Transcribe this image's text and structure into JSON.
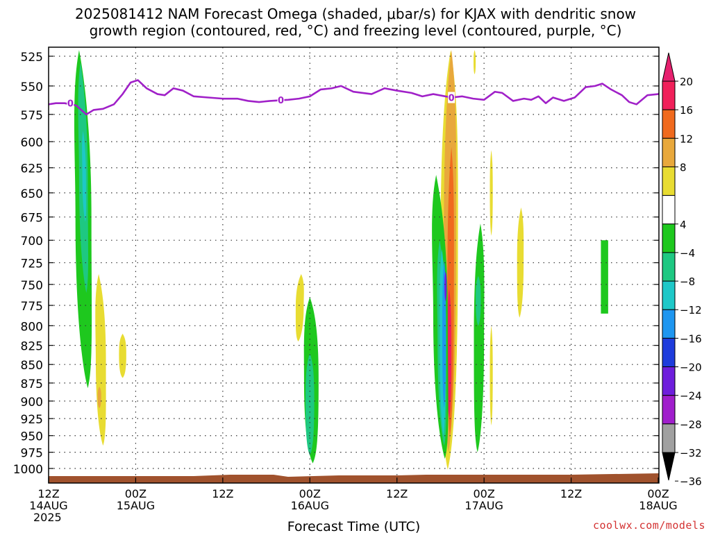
{
  "title": "2025081412 NAM Forecast Omega (shaded, μbar/s) for KJAX with dendritic snow\ngrowth region (contoured, red, °C) and freezing level (contoured, purple, °C)",
  "watermark": "coolwx.com/models",
  "chart_data": {
    "type": "heatmap",
    "title": "2025081412 NAM Forecast Omega (shaded, μbar/s) for KJAX with dendritic snow growth region (contoured, red, °C) and freezing level (contoured, purple, °C)",
    "xlabel": "Forecast Time (UTC)",
    "ylabel": "",
    "ylim": [
      1010,
      520
    ],
    "y_scale": "log pressure, inverted",
    "grid": true,
    "x_ticks": [
      {
        "hour": 0,
        "lines": [
          "12Z",
          "14AUG",
          "2025"
        ]
      },
      {
        "hour": 12,
        "lines": [
          "00Z",
          "15AUG"
        ]
      },
      {
        "hour": 24,
        "lines": [
          "12Z"
        ]
      },
      {
        "hour": 36,
        "lines": [
          "00Z",
          "16AUG"
        ]
      },
      {
        "hour": 48,
        "lines": [
          "12Z"
        ]
      },
      {
        "hour": 60,
        "lines": [
          "00Z",
          "17AUG"
        ]
      },
      {
        "hour": 72,
        "lines": [
          "12Z"
        ]
      },
      {
        "hour": 84,
        "lines": [
          "00Z",
          "18AUG"
        ]
      }
    ],
    "y_ticks": [
      525,
      550,
      575,
      600,
      625,
      650,
      675,
      700,
      725,
      750,
      775,
      800,
      825,
      850,
      875,
      900,
      925,
      950,
      975,
      1000
    ],
    "colorbar": {
      "labels": [
        "20",
        "16",
        "12",
        "8",
        "4",
        "−4",
        "−8",
        "−12",
        "−16",
        "−20",
        "−24",
        "−28",
        "−32",
        "−36"
      ],
      "bins": [
        {
          "range": [
            16,
            20
          ],
          "color": "#f0205a"
        },
        {
          "range": [
            12,
            16
          ],
          "color": "#f06a1e"
        },
        {
          "range": [
            8,
            12
          ],
          "color": "#e8a83c"
        },
        {
          "range": [
            4,
            8
          ],
          "color": "#e8dc32"
        },
        {
          "range": [
            -4,
            4
          ],
          "color": "#ffffff"
        },
        {
          "range": [
            -8,
            -4
          ],
          "color": "#1ec81e"
        },
        {
          "range": [
            -12,
            -8
          ],
          "color": "#1ec882"
        },
        {
          "range": [
            -16,
            -12
          ],
          "color": "#1ec8c8"
        },
        {
          "range": [
            -20,
            -16
          ],
          "color": "#1e96f0"
        },
        {
          "range": [
            -24,
            -20
          ],
          "color": "#1e3cdc"
        },
        {
          "range": [
            -28,
            -24
          ],
          "color": "#6e1edc"
        },
        {
          "range": [
            -32,
            -28
          ],
          "color": "#a01ecc"
        },
        {
          "range": [
            -36,
            -32
          ],
          "color": "#a0a0a0"
        }
      ],
      "top_arrow_color": "#e6206e",
      "bottom_arrow_color": "#000000"
    },
    "freezing_level": {
      "color": "#a020c8",
      "label": "0",
      "points": [
        [
          0,
          566
        ],
        [
          1,
          565
        ],
        [
          2.2,
          565
        ],
        [
          3.8,
          567
        ],
        [
          5.2,
          575
        ],
        [
          6.2,
          571
        ],
        [
          7.5,
          570
        ],
        [
          9,
          566
        ],
        [
          10.2,
          557
        ],
        [
          11.3,
          547
        ],
        [
          12.3,
          545
        ],
        [
          13.5,
          552
        ],
        [
          15,
          557
        ],
        [
          16,
          558
        ],
        [
          17.2,
          552
        ],
        [
          18.5,
          554
        ],
        [
          20,
          559
        ],
        [
          22,
          560
        ],
        [
          24,
          561
        ],
        [
          26,
          561
        ],
        [
          27.5,
          563
        ],
        [
          29,
          564
        ],
        [
          30.5,
          563
        ],
        [
          33,
          562
        ],
        [
          34.5,
          561
        ],
        [
          36,
          559
        ],
        [
          37.5,
          553
        ],
        [
          39,
          552
        ],
        [
          40.3,
          550
        ],
        [
          42,
          555
        ],
        [
          44.5,
          557
        ],
        [
          46.3,
          552
        ],
        [
          48,
          554
        ],
        [
          50,
          556
        ],
        [
          51.5,
          559
        ],
        [
          53,
          557
        ],
        [
          55.5,
          560
        ],
        [
          57,
          559
        ],
        [
          58.5,
          561
        ],
        [
          60,
          562
        ],
        [
          61.5,
          555
        ],
        [
          62.5,
          556
        ],
        [
          64,
          563
        ],
        [
          65.5,
          561
        ],
        [
          66.5,
          562
        ],
        [
          67.5,
          559
        ],
        [
          68.5,
          565
        ],
        [
          69.5,
          560
        ],
        [
          71,
          563
        ],
        [
          72.5,
          560
        ],
        [
          74,
          551
        ],
        [
          75.3,
          550
        ],
        [
          76.3,
          548
        ],
        [
          77.5,
          553
        ],
        [
          79,
          558
        ],
        [
          80,
          564
        ],
        [
          81,
          566
        ],
        [
          82.5,
          558
        ],
        [
          84,
          557
        ],
        [
          85.5,
          549
        ],
        [
          86.7,
          546
        ],
        [
          88,
          550
        ]
      ],
      "label_hours": [
        3,
        32,
        55.5
      ]
    },
    "features": [
      {
        "name": "omega-upward-green-1",
        "value_bin": [
          -8,
          -4
        ],
        "hour": 4.8,
        "width_h": 2.2,
        "p_top": 520,
        "p_bot": 882,
        "skew_h": -1.2
      },
      {
        "name": "omega-upward-teal-1",
        "value_bin": [
          -12,
          -8
        ],
        "hour": 4.8,
        "width_h": 1.2,
        "p_top": 530,
        "p_bot": 760,
        "skew_h": -0.8
      },
      {
        "name": "omega-upward-cyan-1",
        "value_bin": [
          -16,
          -12
        ],
        "hour": 4.9,
        "width_h": 0.5,
        "p_top": 590,
        "p_bot": 680,
        "skew_h": -0.3
      },
      {
        "name": "omega-downward-yellow-1",
        "value_bin": [
          4,
          8
        ],
        "hour": 7.2,
        "width_h": 1.4,
        "p_top": 738,
        "p_bot": 965,
        "skew_h": -0.6
      },
      {
        "name": "omega-downward-orange-1",
        "value_bin": [
          8,
          12
        ],
        "hour": 7.0,
        "width_h": 0.5,
        "p_top": 880,
        "p_bot": 910,
        "skew_h": 0
      },
      {
        "name": "omega-downward-yellow-2",
        "value_bin": [
          4,
          8
        ],
        "hour": 10.2,
        "width_h": 1.0,
        "p_top": 810,
        "p_bot": 868,
        "skew_h": 0
      },
      {
        "name": "omega-downward-yellow-3",
        "value_bin": [
          4,
          8
        ],
        "hour": 34.6,
        "width_h": 1.1,
        "p_top": 738,
        "p_bot": 820,
        "skew_h": 0.4
      },
      {
        "name": "omega-upward-green-2",
        "value_bin": [
          -8,
          -4
        ],
        "hour": 36.2,
        "width_h": 2.0,
        "p_top": 765,
        "p_bot": 992,
        "skew_h": -0.4
      },
      {
        "name": "omega-upward-teal-2",
        "value_bin": [
          -12,
          -8
        ],
        "hour": 36.0,
        "width_h": 1.2,
        "p_top": 835,
        "p_bot": 980,
        "skew_h": 0
      },
      {
        "name": "omega-downward-yellow-4",
        "value_bin": [
          4,
          8
        ],
        "hour": 55.2,
        "width_h": 2.4,
        "p_top": 520,
        "p_bot": 1002,
        "skew_h": 0.4
      },
      {
        "name": "omega-downward-orange-2",
        "value_bin": [
          8,
          12
        ],
        "hour": 55.3,
        "width_h": 1.7,
        "p_top": 520,
        "p_bot": 975,
        "skew_h": 0.4
      },
      {
        "name": "omega-downward-orange-3",
        "value_bin": [
          12,
          16
        ],
        "hour": 55.4,
        "width_h": 0.9,
        "p_top": 605,
        "p_bot": 950,
        "skew_h": 0.2
      },
      {
        "name": "omega-downward-red-1",
        "value_bin": [
          16,
          20
        ],
        "hour": 55.2,
        "width_h": 0.6,
        "p_top": 755,
        "p_bot": 925,
        "skew_h": 0
      },
      {
        "name": "omega-upward-green-3",
        "value_bin": [
          -8,
          -4
        ],
        "hour": 54.0,
        "width_h": 2.0,
        "p_top": 632,
        "p_bot": 985,
        "skew_h": -1.2
      },
      {
        "name": "omega-upward-teal-3",
        "value_bin": [
          -12,
          -8
        ],
        "hour": 54.2,
        "width_h": 1.2,
        "p_top": 700,
        "p_bot": 965,
        "skew_h": -0.6
      },
      {
        "name": "omega-upward-cyan-3",
        "value_bin": [
          -16,
          -12
        ],
        "hour": 54.3,
        "width_h": 0.8,
        "p_top": 710,
        "p_bot": 950,
        "skew_h": -0.2
      },
      {
        "name": "omega-upward-blue-3",
        "value_bin": [
          -20,
          -16
        ],
        "hour": 54.5,
        "width_h": 0.5,
        "p_top": 722,
        "p_bot": 910,
        "skew_h": 0
      },
      {
        "name": "omega-upward-purple-3",
        "value_bin": [
          -28,
          -24
        ],
        "hour": 54.7,
        "width_h": 0.3,
        "p_top": 735,
        "p_bot": 770,
        "skew_h": 0
      },
      {
        "name": "omega-upward-green-4",
        "value_bin": [
          -8,
          -4
        ],
        "hour": 59.3,
        "width_h": 1.4,
        "p_top": 682,
        "p_bot": 975,
        "skew_h": 0.4
      },
      {
        "name": "omega-upward-teal-4",
        "value_bin": [
          -12,
          -8
        ],
        "hour": 59.2,
        "width_h": 0.7,
        "p_top": 740,
        "p_bot": 800,
        "skew_h": 0
      },
      {
        "name": "omega-downward-yellow-5",
        "value_bin": [
          4,
          8
        ],
        "hour": 61.0,
        "width_h": 0.4,
        "p_top": 608,
        "p_bot": 695,
        "skew_h": 0
      },
      {
        "name": "omega-downward-yellow-6",
        "value_bin": [
          4,
          8
        ],
        "hour": 61.0,
        "width_h": 0.4,
        "p_top": 800,
        "p_bot": 935,
        "skew_h": 0
      },
      {
        "name": "omega-downward-yellow-7",
        "value_bin": [
          4,
          8
        ],
        "hour": 65.0,
        "width_h": 0.9,
        "p_top": 665,
        "p_bot": 790,
        "skew_h": 0.2
      },
      {
        "name": "omega-downward-yellow-8",
        "value_bin": [
          4,
          8
        ],
        "hour": 58.7,
        "width_h": 0.3,
        "p_top": 520,
        "p_bot": 540,
        "skew_h": 0
      },
      {
        "name": "omega-upward-green-5",
        "value_bin": [
          -8,
          -4
        ],
        "hour": 76.6,
        "width_h": 1.0,
        "p_top": 700,
        "p_bot": 785,
        "skew_h": 0,
        "shape": "rect"
      }
    ],
    "ground": {
      "color": "#a0522d",
      "label": "terrain"
    }
  }
}
